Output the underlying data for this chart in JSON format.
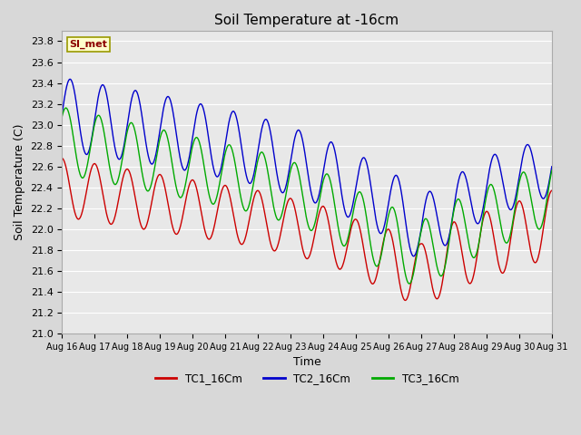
{
  "title": "Soil Temperature at -16cm",
  "xlabel": "Time",
  "ylabel": "Soil Temperature (C)",
  "ylim": [
    21.0,
    23.9
  ],
  "background_color": "#d8d8d8",
  "plot_bg_color": "#e8e8e8",
  "grid_color": "#ffffff",
  "legend_label": "SI_met",
  "series": {
    "TC1_16Cm": {
      "color": "#cc0000",
      "label": "TC1_16Cm"
    },
    "TC2_16Cm": {
      "color": "#0000cc",
      "label": "TC2_16Cm"
    },
    "TC3_16Cm": {
      "color": "#00aa00",
      "label": "TC3_16Cm"
    }
  },
  "xtick_labels": [
    "Aug 16",
    "Aug 17",
    "Aug 18",
    "Aug 19",
    "Aug 20",
    "Aug 21",
    "Aug 22",
    "Aug 23",
    "Aug 24",
    "Aug 25",
    "Aug 26",
    "Aug 27",
    "Aug 28",
    "Aug 29",
    "Aug 30",
    "Aug 31"
  ],
  "ytick_values": [
    21.0,
    21.2,
    21.4,
    21.6,
    21.8,
    22.0,
    22.2,
    22.4,
    22.6,
    22.8,
    23.0,
    23.2,
    23.4,
    23.6,
    23.8
  ]
}
